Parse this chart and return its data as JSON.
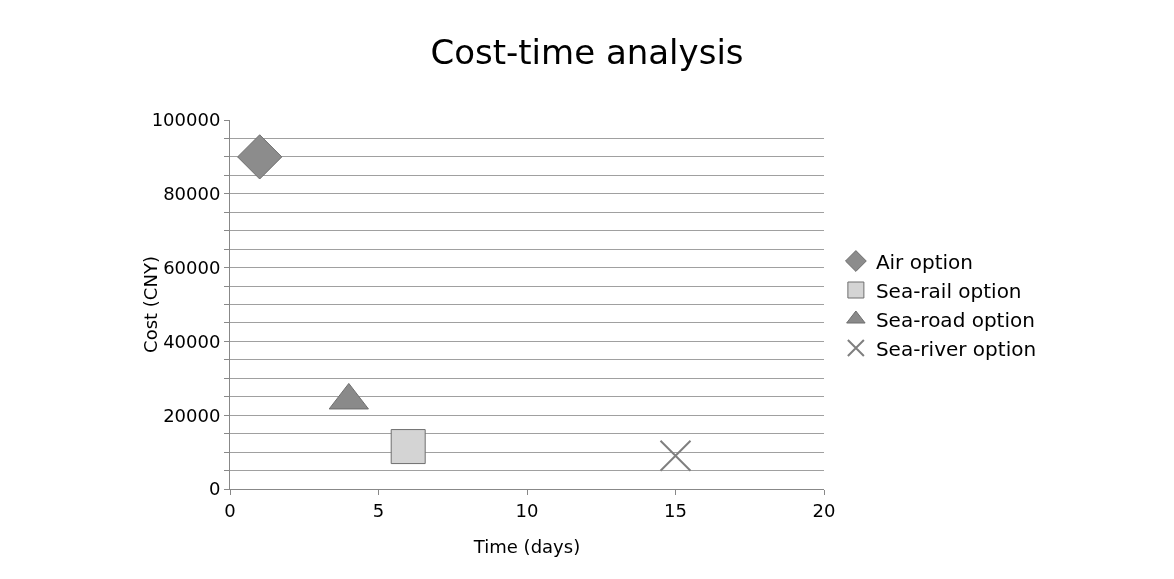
{
  "chart_data": {
    "type": "scatter",
    "title": "Cost-time analysis",
    "xlabel": "Time (days)",
    "ylabel": "Cost (CNY)",
    "xlim": [
      0,
      20
    ],
    "xticks": [
      0,
      5,
      10,
      15,
      20
    ],
    "ylim": [
      0,
      100000
    ],
    "yticks": [
      0,
      {
        "value": 5000,
        "label": null
      },
      {
        "value": 10000,
        "label": null
      },
      {
        "value": 15000,
        "label": null
      },
      20000,
      {
        "value": 25000,
        "label": null
      },
      {
        "value": 30000,
        "label": null
      },
      {
        "value": 35000,
        "label": null
      },
      40000,
      {
        "value": 45000,
        "label": null
      },
      {
        "value": 50000,
        "label": null
      },
      {
        "value": 55000,
        "label": null
      },
      60000,
      {
        "value": 65000,
        "label": null
      },
      {
        "value": 70000,
        "label": null
      },
      {
        "value": 75000,
        "label": null
      },
      80000,
      {
        "value": 85000,
        "label": null
      },
      {
        "value": 90000,
        "label": null
      },
      {
        "value": 95000,
        "label": null
      },
      100000
    ],
    "grid": "y",
    "legend": "right",
    "series": [
      {
        "name": "Air option",
        "color": "#8c8c8c",
        "marker": "diamond",
        "x": [
          1
        ],
        "values": [
          90000
        ]
      },
      {
        "name": "Sea-rail option",
        "color": "#d4d4d4",
        "marker": "square",
        "x": [
          6
        ],
        "values": [
          11500
        ]
      },
      {
        "name": "Sea-road option",
        "color": "#8a8a8a",
        "marker": "triangle",
        "x": [
          4
        ],
        "values": [
          24000
        ]
      },
      {
        "name": "Sea-river option",
        "color": "#7f7f7f",
        "marker": "cross",
        "x": [
          15
        ],
        "values": [
          9000
        ]
      }
    ]
  }
}
